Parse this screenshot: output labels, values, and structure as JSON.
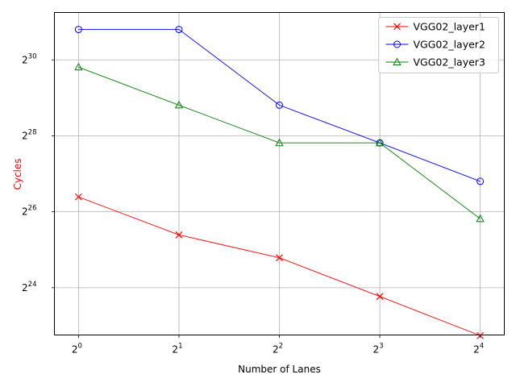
{
  "chart_data": {
    "type": "line",
    "title": "",
    "xlabel": "Number of Lanes",
    "ylabel": "Cycles",
    "ylabel_color": "#ff0000",
    "x_scale": "log2",
    "y_scale": "log2",
    "x": [
      1,
      2,
      4,
      8,
      16
    ],
    "xticks": [
      {
        "value": 1,
        "base": "2",
        "exp": "0"
      },
      {
        "value": 2,
        "base": "2",
        "exp": "1"
      },
      {
        "value": 4,
        "base": "2",
        "exp": "2"
      },
      {
        "value": 8,
        "base": "2",
        "exp": "3"
      },
      {
        "value": 16,
        "base": "2",
        "exp": "4"
      }
    ],
    "yticks": [
      {
        "value": 16777216,
        "base": "2",
        "exp": "24"
      },
      {
        "value": 67108864,
        "base": "2",
        "exp": "26"
      },
      {
        "value": 268435456,
        "base": "2",
        "exp": "28"
      },
      {
        "value": 1073741824,
        "base": "2",
        "exp": "30"
      }
    ],
    "xlim": [
      0.8467,
      18.892
    ],
    "ylim": [
      7077888,
      2550000000
    ],
    "grid": true,
    "legend_position": "top-right",
    "series": [
      {
        "name": "VGG02_layer1",
        "color": "#ff0000",
        "marker": "x",
        "values": [
          88000000,
          44000000,
          29000000,
          14300000,
          7000000
        ]
      },
      {
        "name": "VGG02_layer2",
        "color": "#0000ff",
        "marker": "o",
        "values": [
          1870000000,
          1870000000,
          470000000,
          236000000,
          117000000
        ]
      },
      {
        "name": "VGG02_layer3",
        "color": "#008000",
        "marker": "^",
        "values": [
          940000000,
          470000000,
          236000000,
          236000000,
          59000000
        ]
      }
    ]
  }
}
